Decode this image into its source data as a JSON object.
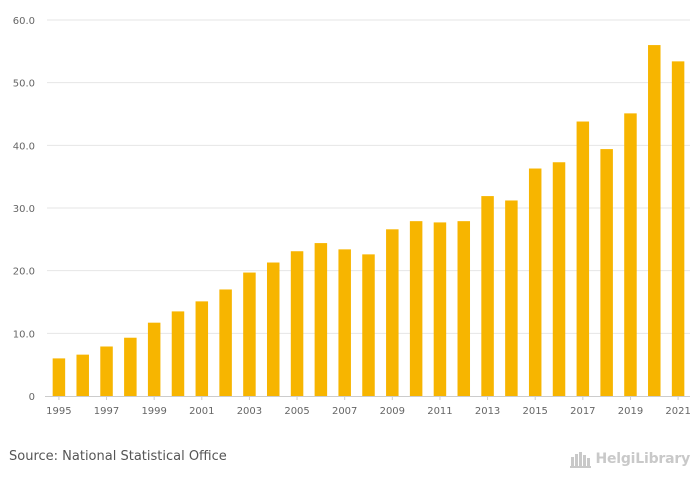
{
  "chart_data": {
    "type": "bar",
    "title": "",
    "xlabel": "",
    "ylabel": "",
    "categories": [
      "1995",
      "1996",
      "1997",
      "1998",
      "1999",
      "2000",
      "2001",
      "2002",
      "2003",
      "2004",
      "2005",
      "2006",
      "2007",
      "2008",
      "2009",
      "2010",
      "2011",
      "2012",
      "2013",
      "2014",
      "2015",
      "2016",
      "2017",
      "2018",
      "2019",
      "2020",
      "2021"
    ],
    "values": [
      6.0,
      6.6,
      7.9,
      9.3,
      11.7,
      13.5,
      15.1,
      17.0,
      19.7,
      21.3,
      23.1,
      24.4,
      23.4,
      22.6,
      26.6,
      27.9,
      27.7,
      27.9,
      31.9,
      31.2,
      36.3,
      37.3,
      43.8,
      39.4,
      45.1,
      56.0,
      53.4
    ],
    "x_tick_labels": [
      "1995",
      "1997",
      "1999",
      "2001",
      "2003",
      "2005",
      "2007",
      "2009",
      "2011",
      "2013",
      "2015",
      "2017",
      "2019",
      "2021"
    ],
    "y_ticks": [
      0,
      10,
      20,
      30,
      40,
      50,
      60
    ],
    "y_tick_labels": [
      "0",
      "10.0",
      "20.0",
      "30.0",
      "40.0",
      "50.0",
      "60.0"
    ],
    "ylim": [
      0,
      60
    ],
    "grid": true,
    "bar_color": "#f7b500",
    "grid_color": "#e6e6e6"
  },
  "footer": {
    "source": "Source: National Statistical Office",
    "logo_text": "HelgiLibrary"
  }
}
